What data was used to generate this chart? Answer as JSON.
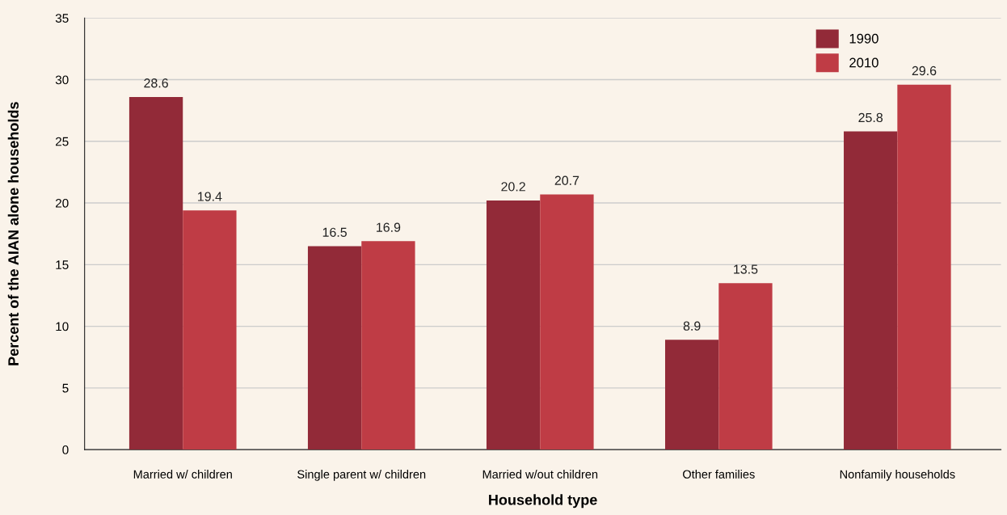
{
  "chart_data": {
    "type": "bar",
    "xlabel": "Household type",
    "ylabel": "Percent of the AIAN alone households",
    "categories": [
      "Married w/ children",
      "Single parent w/ children",
      "Married w/out children",
      "Other families",
      "Nonfamily households"
    ],
    "series": [
      {
        "name": "1990",
        "color": "#922a38",
        "values": [
          28.6,
          16.5,
          20.2,
          8.9,
          25.8
        ]
      },
      {
        "name": "2010",
        "color": "#bf3c45",
        "values": [
          19.4,
          16.9,
          20.7,
          13.5,
          29.6
        ]
      }
    ],
    "ylim": [
      0,
      35
    ],
    "yticks": [
      0,
      5,
      10,
      15,
      20,
      25,
      30,
      35
    ],
    "grid": "y",
    "legend": "top right",
    "data_labels": true
  }
}
